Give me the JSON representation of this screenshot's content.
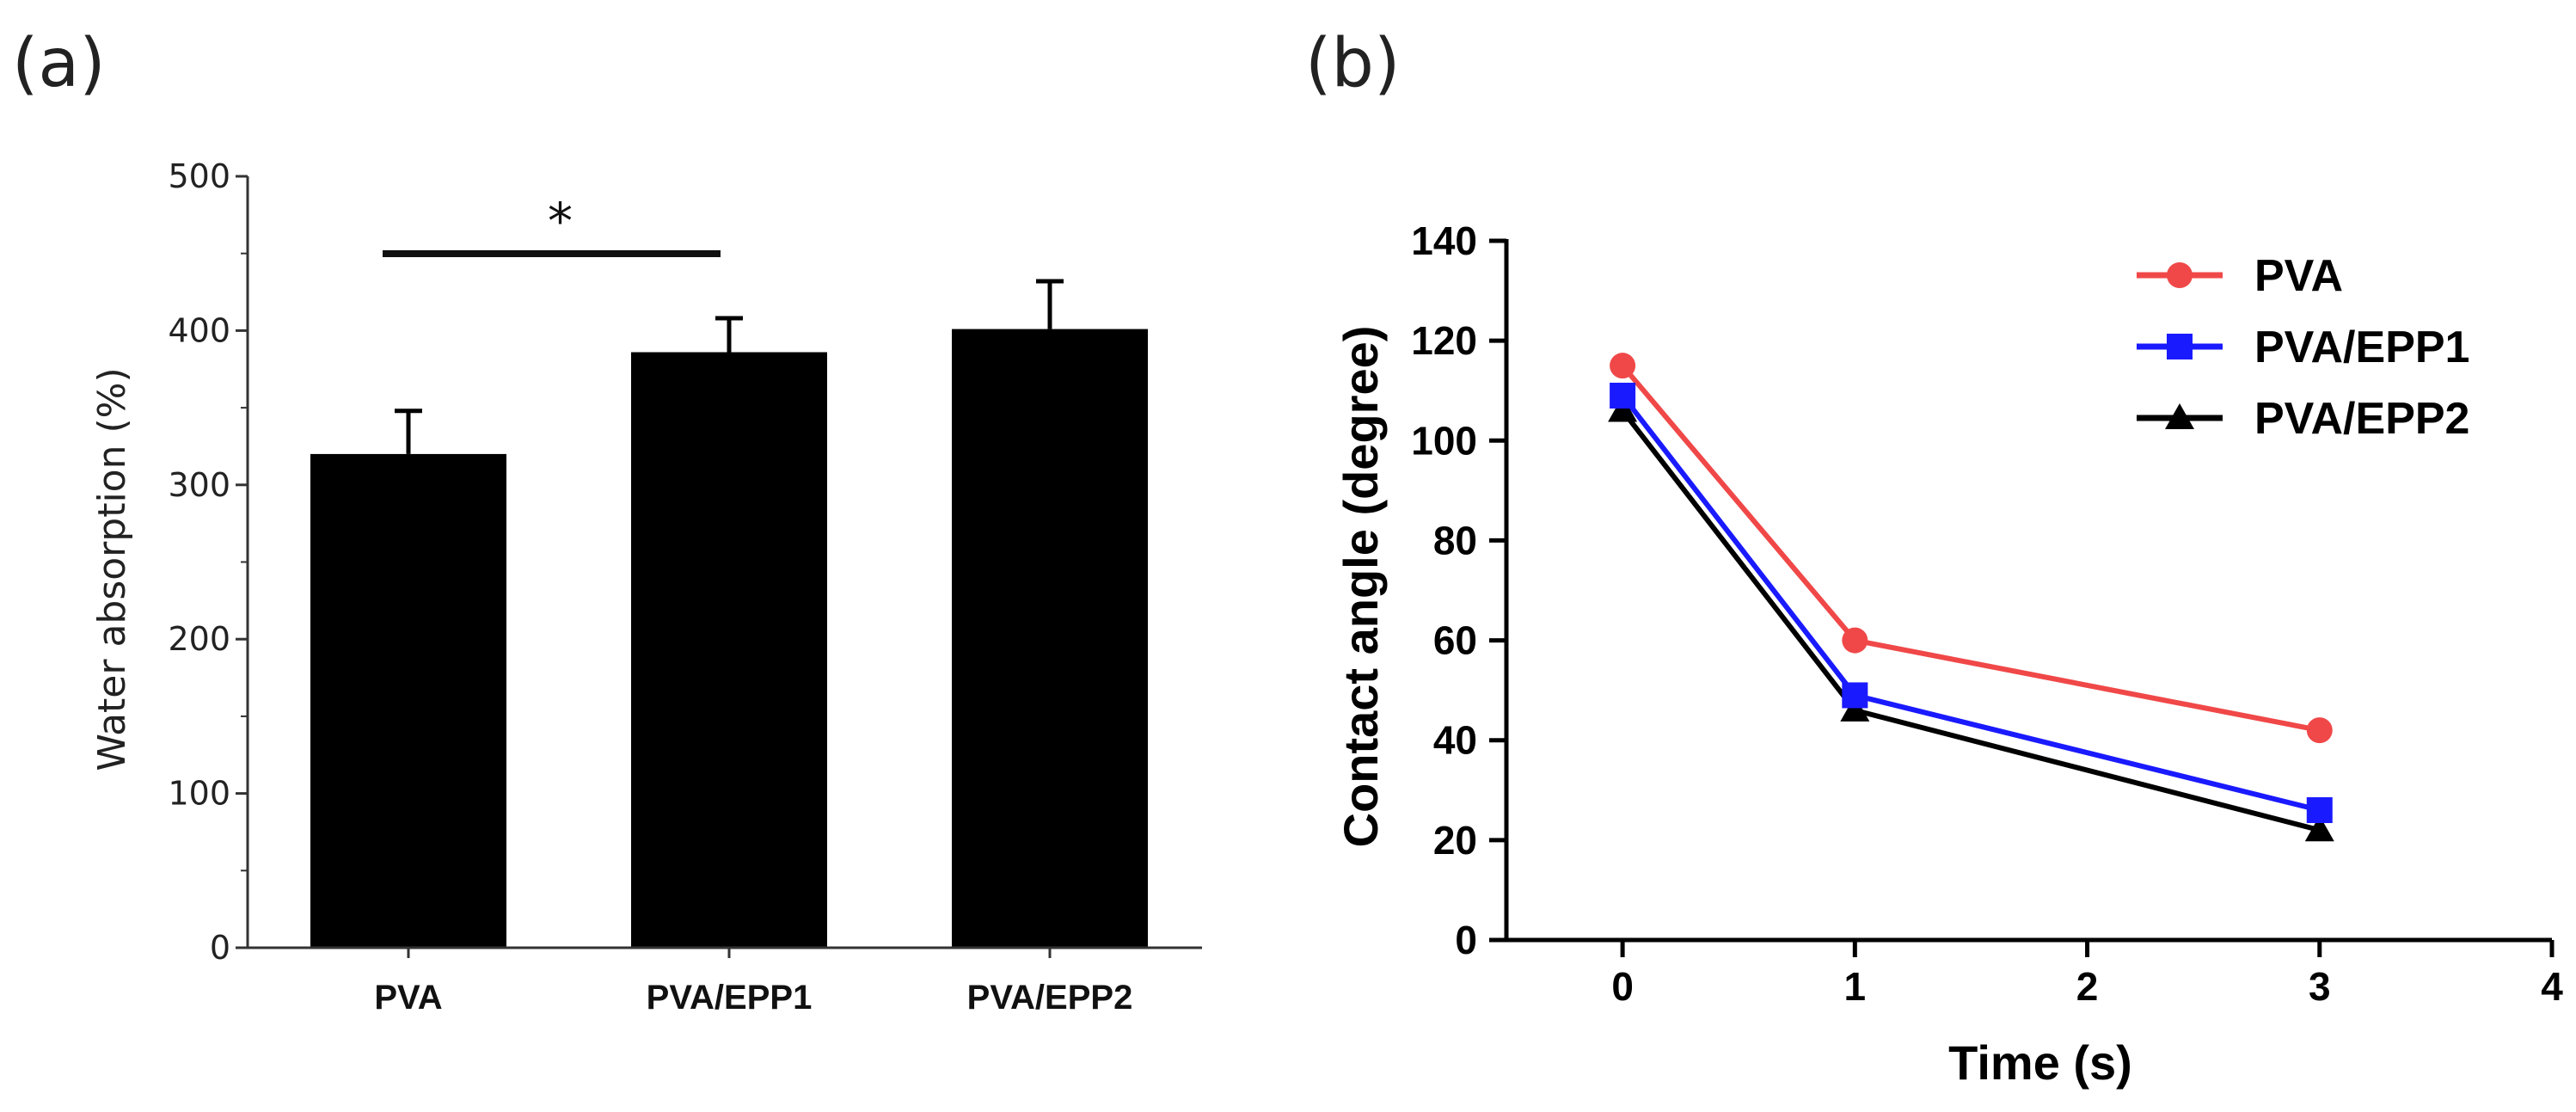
{
  "chart_data": [
    {
      "panel": "(a)",
      "type": "bar",
      "ylabel": "Water absorption (%)",
      "xlabel": "",
      "ylim": [
        0,
        500
      ],
      "yticks": [
        "0",
        "100",
        "200",
        "300",
        "400",
        "500"
      ],
      "categories": [
        "PVA",
        "PVA/EPP1",
        "PVA/EPP2"
      ],
      "values": [
        320,
        386,
        401
      ],
      "errors": [
        28,
        22,
        31
      ],
      "colors": {
        "bar": "#000000",
        "axis": "#333333"
      },
      "significance": {
        "from": "PVA",
        "to": "PVA/EPP1",
        "label": "*"
      }
    },
    {
      "panel": "(b)",
      "type": "line",
      "xlabel": "Time (s)",
      "ylabel": "Contact angle (degree)",
      "xlim": [
        -0.5,
        4
      ],
      "ylim": [
        0,
        140
      ],
      "xticks": [
        "0",
        "1",
        "2",
        "3",
        "4"
      ],
      "yticks": [
        "0",
        "20",
        "40",
        "60",
        "80",
        "100",
        "120",
        "140"
      ],
      "x": [
        0,
        1,
        3
      ],
      "legend_position": "top-right",
      "series": [
        {
          "name": "PVA",
          "values": [
            115,
            60,
            42
          ],
          "color": "#f04848",
          "marker": "circle"
        },
        {
          "name": "PVA/EPP1",
          "values": [
            109,
            49,
            26
          ],
          "color": "#1a1aff",
          "marker": "square"
        },
        {
          "name": "PVA/EPP2",
          "values": [
            106,
            46,
            22
          ],
          "color": "#000000",
          "marker": "triangle"
        }
      ]
    }
  ]
}
